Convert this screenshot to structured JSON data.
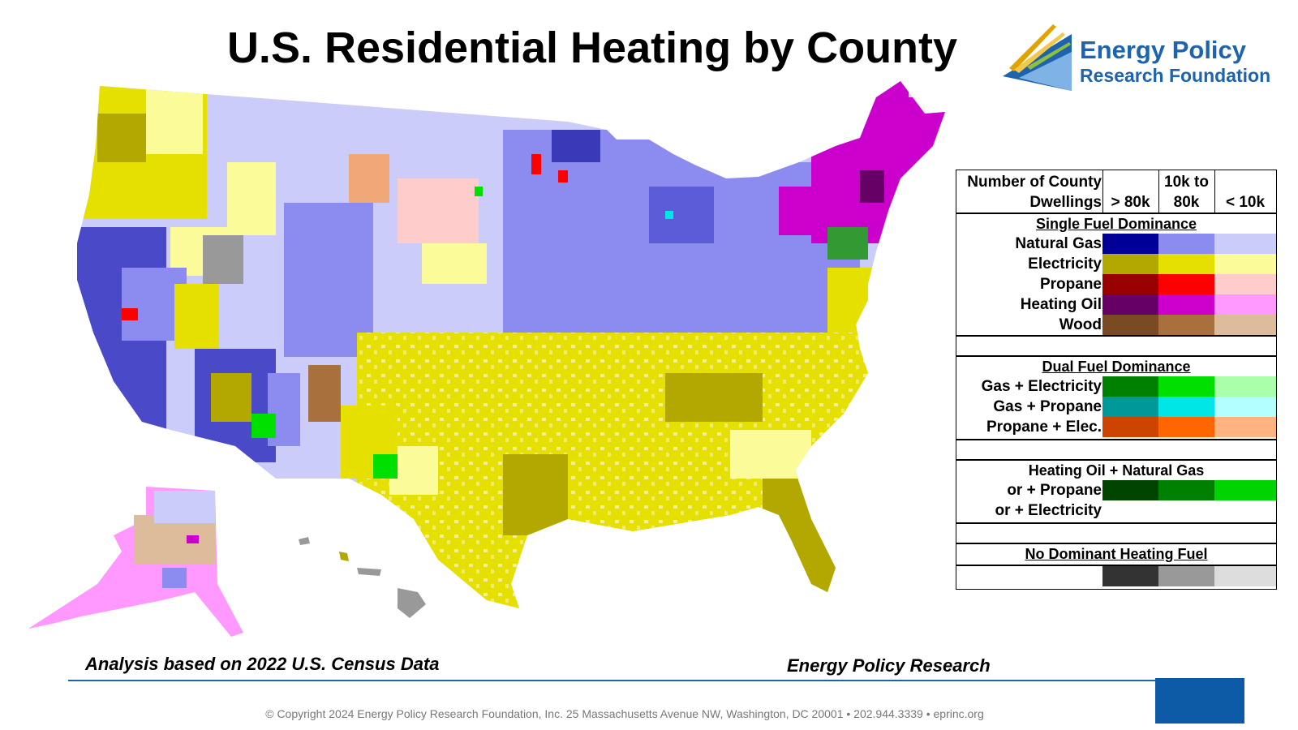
{
  "title": "U.S. Residential Heating by County",
  "logo": {
    "line1": "Energy Policy",
    "line2": "Research Foundation",
    "brand_color": "#1e63ae"
  },
  "legend": {
    "header_line1": "Number of County",
    "header_line2": "Dwellings",
    "columns": [
      {
        "line1": "",
        "line2": "> 80k"
      },
      {
        "line1": "10k to",
        "line2": "80k"
      },
      {
        "line1": "",
        "line2": "< 10k"
      }
    ],
    "single": {
      "title": "Single Fuel Dominance",
      "rows": [
        {
          "label": "Natural Gas",
          "colors": [
            "#000099",
            "#8c8cf0",
            "#ccccfa"
          ]
        },
        {
          "label": "Electricity",
          "colors": [
            "#b3a800",
            "#e6e000",
            "#fbfb99"
          ]
        },
        {
          "label": "Propane",
          "colors": [
            "#990000",
            "#ff0000",
            "#ffcccc"
          ]
        },
        {
          "label": "Heating Oil",
          "colors": [
            "#660066",
            "#cc00cc",
            "#ff99ff"
          ]
        },
        {
          "label": "Wood",
          "colors": [
            "#7a4a22",
            "#a8703c",
            "#dcbc9a"
          ]
        }
      ]
    },
    "dual": {
      "title": "Dual Fuel Dominance",
      "rows": [
        {
          "label": "Gas + Electricity",
          "colors": [
            "#008000",
            "#00e000",
            "#aaffaa"
          ]
        },
        {
          "label": "Gas + Propane",
          "colors": [
            "#009999",
            "#00e6e6",
            "#b3ffff"
          ]
        },
        {
          "label": "Propane + Elec.",
          "colors": [
            "#cc4400",
            "#ff6600",
            "#ffb380"
          ]
        }
      ]
    },
    "oil": {
      "title": "Heating Oil + Natural Gas",
      "rows": [
        {
          "label": "or + Propane",
          "colors": [
            "#004400",
            "#008000",
            "#00d400"
          ]
        },
        {
          "label": "or + Electricity",
          "colors": []
        }
      ]
    },
    "none": {
      "title": "No Dominant Heating Fuel",
      "colors": [
        "#333333",
        "#999999",
        "#dddddd"
      ]
    }
  },
  "footer": {
    "left": "Analysis based on 2022 U.S. Census Data",
    "right": "Energy Policy Research",
    "copyright": "© Copyright 2024 Energy Policy Research Foundation, Inc. 25 Massachusetts Avenue NW, Washington, DC 20001 • 202.944.3339 • eprinc.org"
  }
}
